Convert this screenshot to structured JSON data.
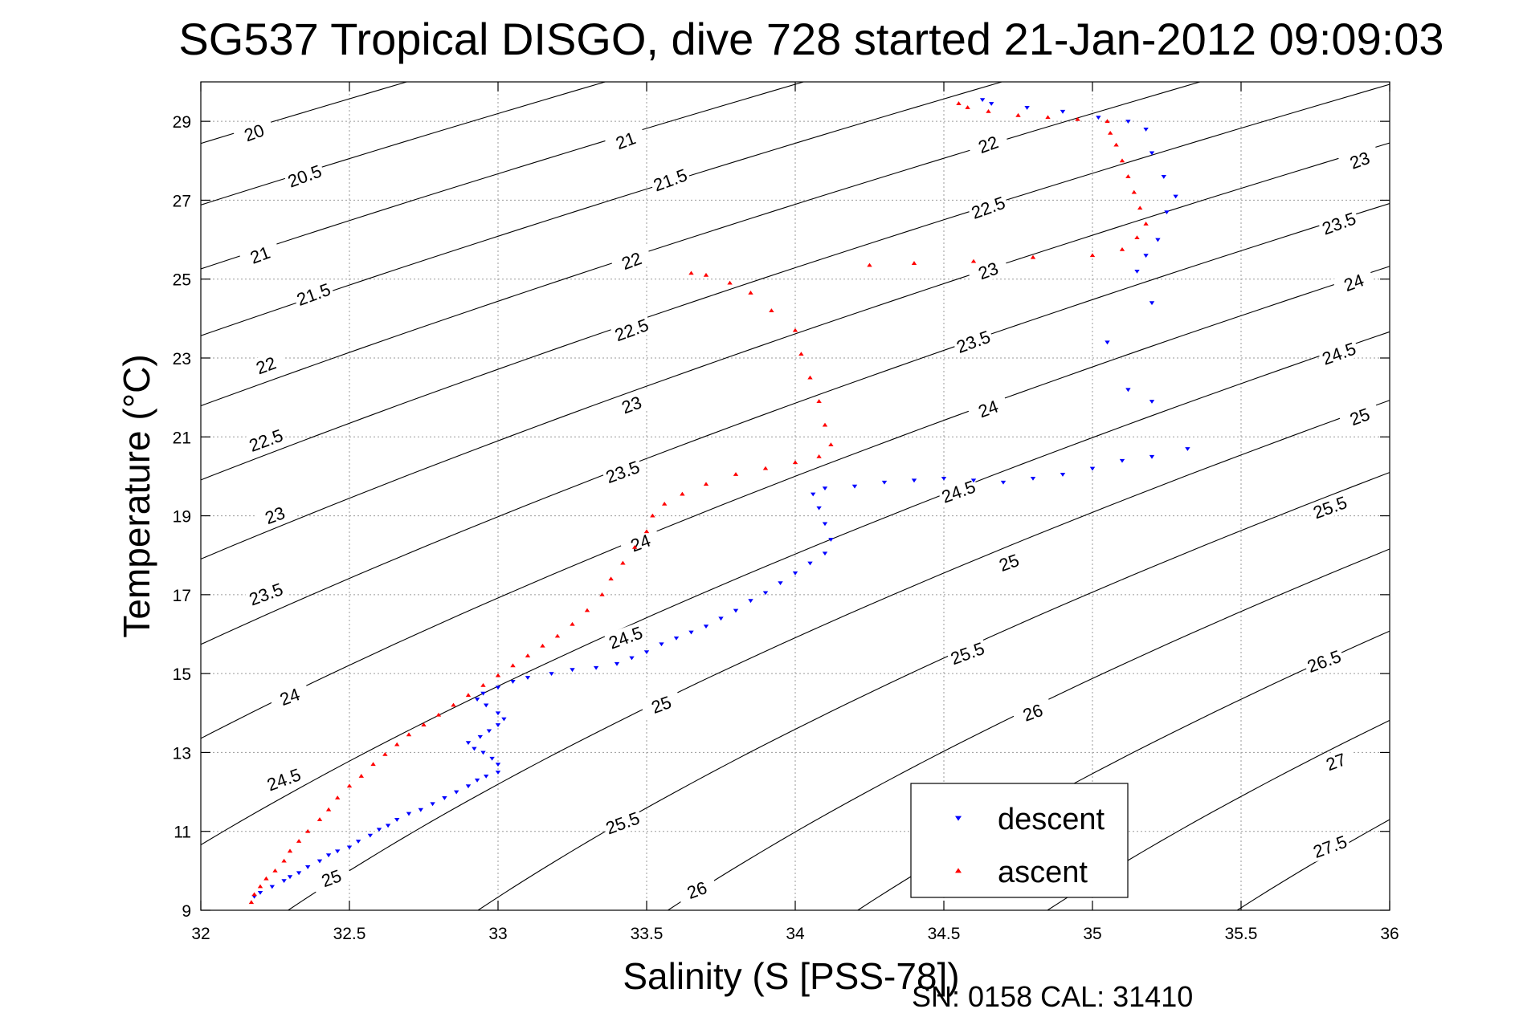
{
  "chart_data": {
    "type": "scatter",
    "title": "SG537 Tropical DISGO, dive 728 started 21-Jan-2012 09:09:03",
    "xlabel": "Salinity (S [PSS-78])",
    "ylabel": "Temperature (°C)",
    "xlim": [
      32,
      36
    ],
    "ylim": [
      9,
      30
    ],
    "x_ticks": [
      32,
      32.5,
      33,
      33.5,
      34,
      34.5,
      35,
      35.5,
      36
    ],
    "x_tick_labels": [
      "32",
      "32.5",
      "33",
      "33.5",
      "34",
      "34.5",
      "35",
      "35.5",
      "36"
    ],
    "y_ticks": [
      9,
      11,
      13,
      15,
      17,
      19,
      21,
      23,
      25,
      27,
      29
    ],
    "y_tick_labels": [
      "9",
      "11",
      "13",
      "15",
      "17",
      "19",
      "21",
      "23",
      "25",
      "27",
      "29"
    ],
    "grid": true,
    "legend_position": "bottom-right",
    "footer": "SN: 0158  CAL: 31410",
    "density_contours": {
      "levels": [
        20,
        20.5,
        21,
        21.5,
        22,
        22.5,
        23,
        23.5,
        24,
        24.5,
        25,
        25.5,
        26,
        26.5,
        27,
        27.5
      ],
      "labels": [
        {
          "text": "20",
          "s": 32.18,
          "t": 28.7
        },
        {
          "text": "20.5",
          "s": 32.35,
          "t": 27.6
        },
        {
          "text": "21",
          "s": 32.2,
          "t": 25.6
        },
        {
          "text": "21.5",
          "s": 32.38,
          "t": 24.6
        },
        {
          "text": "22",
          "s": 32.22,
          "t": 22.8
        },
        {
          "text": "22.5",
          "s": 32.22,
          "t": 20.9
        },
        {
          "text": "23",
          "s": 32.25,
          "t": 19.0
        },
        {
          "text": "23.5",
          "s": 32.22,
          "t": 17.0
        },
        {
          "text": "24",
          "s": 32.3,
          "t": 14.4
        },
        {
          "text": "24.5",
          "s": 32.28,
          "t": 12.3
        },
        {
          "text": "25",
          "s": 32.44,
          "t": 9.8
        },
        {
          "text": "21",
          "s": 33.43,
          "t": 28.5
        },
        {
          "text": "21.5",
          "s": 33.58,
          "t": 27.5
        },
        {
          "text": "22",
          "s": 33.45,
          "t": 25.45
        },
        {
          "text": "22.5",
          "s": 33.45,
          "t": 23.7
        },
        {
          "text": "23",
          "s": 33.45,
          "t": 21.8
        },
        {
          "text": "23.5",
          "s": 33.42,
          "t": 20.1
        },
        {
          "text": "24",
          "s": 33.48,
          "t": 18.3
        },
        {
          "text": "24.5",
          "s": 33.43,
          "t": 15.9
        },
        {
          "text": "25",
          "s": 33.55,
          "t": 14.2
        },
        {
          "text": "25.5",
          "s": 33.42,
          "t": 11.2
        },
        {
          "text": "26",
          "s": 33.67,
          "t": 9.5
        },
        {
          "text": "22",
          "s": 34.65,
          "t": 28.4
        },
        {
          "text": "22.5",
          "s": 34.65,
          "t": 26.8
        },
        {
          "text": "23",
          "s": 34.65,
          "t": 25.2
        },
        {
          "text": "23.5",
          "s": 34.6,
          "t": 23.4
        },
        {
          "text": "24",
          "s": 34.65,
          "t": 21.7
        },
        {
          "text": "24.5",
          "s": 34.55,
          "t": 19.6
        },
        {
          "text": "25",
          "s": 34.72,
          "t": 17.8
        },
        {
          "text": "25.5",
          "s": 34.58,
          "t": 15.5
        },
        {
          "text": "26",
          "s": 34.8,
          "t": 14.0
        },
        {
          "text": "23",
          "s": 35.9,
          "t": 28.0
        },
        {
          "text": "23.5",
          "s": 35.83,
          "t": 26.4
        },
        {
          "text": "24",
          "s": 35.88,
          "t": 24.9
        },
        {
          "text": "24.5",
          "s": 35.83,
          "t": 23.1
        },
        {
          "text": "25",
          "s": 35.9,
          "t": 21.5
        },
        {
          "text": "25.5",
          "s": 35.8,
          "t": 19.2
        },
        {
          "text": "26.5",
          "s": 35.78,
          "t": 15.3
        },
        {
          "text": "27",
          "s": 35.82,
          "t": 12.75
        },
        {
          "text": "27.5",
          "s": 35.8,
          "t": 10.6
        }
      ]
    },
    "series": [
      {
        "name": "descent",
        "color": "#0000ff",
        "marker": "triangle-down",
        "points": [
          [
            32.18,
            9.35
          ],
          [
            32.2,
            9.45
          ],
          [
            32.24,
            9.6
          ],
          [
            32.28,
            9.75
          ],
          [
            32.3,
            9.85
          ],
          [
            32.33,
            9.95
          ],
          [
            32.36,
            10.1
          ],
          [
            32.4,
            10.25
          ],
          [
            32.43,
            10.4
          ],
          [
            32.46,
            10.5
          ],
          [
            32.5,
            10.6
          ],
          [
            32.53,
            10.75
          ],
          [
            32.57,
            10.9
          ],
          [
            32.6,
            11.05
          ],
          [
            32.63,
            11.15
          ],
          [
            32.66,
            11.3
          ],
          [
            32.7,
            11.45
          ],
          [
            32.74,
            11.55
          ],
          [
            32.78,
            11.7
          ],
          [
            32.82,
            11.85
          ],
          [
            32.86,
            12.0
          ],
          [
            32.9,
            12.15
          ],
          [
            32.93,
            12.3
          ],
          [
            32.96,
            12.4
          ],
          [
            33.0,
            12.5
          ],
          [
            33.0,
            12.7
          ],
          [
            32.98,
            12.85
          ],
          [
            32.95,
            13.0
          ],
          [
            32.92,
            13.1
          ],
          [
            32.9,
            13.25
          ],
          [
            32.94,
            13.4
          ],
          [
            32.97,
            13.55
          ],
          [
            33.0,
            13.7
          ],
          [
            33.02,
            13.85
          ],
          [
            33.0,
            14.0
          ],
          [
            32.96,
            14.2
          ],
          [
            32.93,
            14.35
          ],
          [
            32.95,
            14.5
          ],
          [
            33.0,
            14.65
          ],
          [
            33.05,
            14.8
          ],
          [
            33.1,
            14.9
          ],
          [
            33.18,
            15.0
          ],
          [
            33.25,
            15.1
          ],
          [
            33.33,
            15.15
          ],
          [
            33.4,
            15.25
          ],
          [
            33.45,
            15.4
          ],
          [
            33.5,
            15.55
          ],
          [
            33.55,
            15.75
          ],
          [
            33.6,
            15.9
          ],
          [
            33.65,
            16.05
          ],
          [
            33.7,
            16.2
          ],
          [
            33.75,
            16.4
          ],
          [
            33.8,
            16.6
          ],
          [
            33.85,
            16.85
          ],
          [
            33.9,
            17.05
          ],
          [
            33.95,
            17.3
          ],
          [
            34.0,
            17.55
          ],
          [
            34.05,
            17.8
          ],
          [
            34.1,
            18.05
          ],
          [
            34.12,
            18.4
          ],
          [
            34.1,
            18.8
          ],
          [
            34.08,
            19.2
          ],
          [
            34.06,
            19.55
          ],
          [
            34.1,
            19.7
          ],
          [
            34.2,
            19.75
          ],
          [
            34.3,
            19.85
          ],
          [
            34.4,
            19.9
          ],
          [
            34.5,
            19.95
          ],
          [
            34.6,
            19.9
          ],
          [
            34.7,
            19.85
          ],
          [
            34.8,
            19.95
          ],
          [
            34.9,
            20.05
          ],
          [
            35.0,
            20.2
          ],
          [
            35.1,
            20.4
          ],
          [
            35.2,
            20.5
          ],
          [
            35.32,
            20.7
          ],
          [
            35.2,
            21.9
          ],
          [
            35.12,
            22.2
          ],
          [
            35.05,
            23.4
          ],
          [
            35.2,
            24.4
          ],
          [
            35.15,
            25.2
          ],
          [
            35.18,
            25.6
          ],
          [
            35.22,
            26.0
          ],
          [
            35.25,
            26.7
          ],
          [
            35.28,
            27.1
          ],
          [
            35.24,
            27.6
          ],
          [
            35.2,
            28.2
          ],
          [
            35.18,
            28.8
          ],
          [
            35.12,
            29.0
          ],
          [
            35.02,
            29.1
          ],
          [
            34.9,
            29.25
          ],
          [
            34.78,
            29.35
          ],
          [
            34.66,
            29.45
          ],
          [
            34.63,
            29.55
          ]
        ]
      },
      {
        "name": "ascent",
        "color": "#ff0000",
        "marker": "triangle-up",
        "points": [
          [
            32.17,
            9.2
          ],
          [
            32.18,
            9.4
          ],
          [
            32.2,
            9.6
          ],
          [
            32.22,
            9.8
          ],
          [
            32.25,
            10.0
          ],
          [
            32.28,
            10.25
          ],
          [
            32.3,
            10.5
          ],
          [
            32.33,
            10.75
          ],
          [
            32.36,
            11.0
          ],
          [
            32.4,
            11.3
          ],
          [
            32.43,
            11.55
          ],
          [
            32.46,
            11.85
          ],
          [
            32.5,
            12.15
          ],
          [
            32.54,
            12.4
          ],
          [
            32.58,
            12.7
          ],
          [
            32.62,
            12.95
          ],
          [
            32.66,
            13.2
          ],
          [
            32.7,
            13.45
          ],
          [
            32.75,
            13.7
          ],
          [
            32.8,
            13.95
          ],
          [
            32.85,
            14.2
          ],
          [
            32.9,
            14.45
          ],
          [
            32.95,
            14.7
          ],
          [
            33.0,
            14.95
          ],
          [
            33.05,
            15.2
          ],
          [
            33.1,
            15.45
          ],
          [
            33.15,
            15.7
          ],
          [
            33.2,
            15.95
          ],
          [
            33.25,
            16.25
          ],
          [
            33.3,
            16.6
          ],
          [
            33.35,
            17.0
          ],
          [
            33.38,
            17.4
          ],
          [
            33.42,
            17.8
          ],
          [
            33.46,
            18.2
          ],
          [
            33.5,
            18.6
          ],
          [
            33.52,
            19.0
          ],
          [
            33.56,
            19.3
          ],
          [
            33.62,
            19.55
          ],
          [
            33.7,
            19.8
          ],
          [
            33.8,
            20.05
          ],
          [
            33.9,
            20.2
          ],
          [
            34.0,
            20.35
          ],
          [
            34.08,
            20.5
          ],
          [
            34.12,
            20.8
          ],
          [
            34.1,
            21.3
          ],
          [
            34.08,
            21.9
          ],
          [
            34.05,
            22.5
          ],
          [
            34.02,
            23.1
          ],
          [
            34.0,
            23.7
          ],
          [
            33.92,
            24.2
          ],
          [
            33.85,
            24.65
          ],
          [
            33.78,
            24.9
          ],
          [
            33.7,
            25.1
          ],
          [
            33.65,
            25.15
          ],
          [
            34.25,
            25.35
          ],
          [
            34.4,
            25.4
          ],
          [
            34.6,
            25.45
          ],
          [
            34.8,
            25.55
          ],
          [
            35.0,
            25.6
          ],
          [
            35.1,
            25.75
          ],
          [
            35.15,
            26.05
          ],
          [
            35.18,
            26.4
          ],
          [
            35.16,
            26.8
          ],
          [
            35.14,
            27.2
          ],
          [
            35.12,
            27.6
          ],
          [
            35.1,
            28.0
          ],
          [
            35.08,
            28.4
          ],
          [
            35.06,
            28.7
          ],
          [
            35.05,
            29.0
          ],
          [
            34.95,
            29.05
          ],
          [
            34.85,
            29.1
          ],
          [
            34.75,
            29.15
          ],
          [
            34.65,
            29.25
          ],
          [
            34.58,
            29.35
          ],
          [
            34.55,
            29.45
          ]
        ]
      }
    ]
  }
}
